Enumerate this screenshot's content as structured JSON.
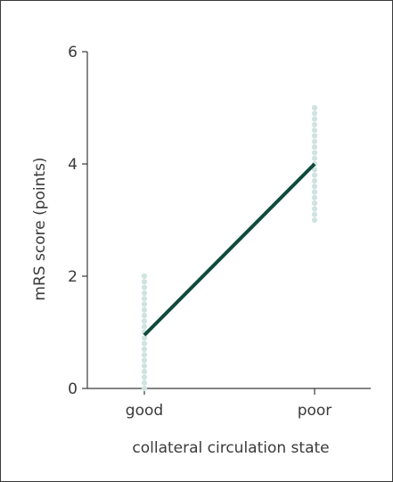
{
  "chart_data": {
    "type": "scatter",
    "xlabel": "collateral circulation state",
    "ylabel": "mRS score (points)",
    "categories": [
      "good",
      "poor"
    ],
    "ylim": [
      0,
      6
    ],
    "yticks": [
      "0",
      "2",
      "4",
      "6"
    ],
    "grid": false,
    "legend": "none",
    "trend_line": {
      "from": 0.95,
      "to": 4.0
    },
    "series": [
      {
        "category": "good",
        "values": [
          2.0,
          1.9,
          1.8,
          1.7,
          1.6,
          1.5,
          1.4,
          1.3,
          1.2,
          1.1,
          1.0,
          0.9,
          0.8,
          0.7,
          0.6,
          0.5,
          0.4,
          0.3,
          0.2,
          0.1,
          0.0
        ]
      },
      {
        "category": "poor",
        "values": [
          5.0,
          4.9,
          4.8,
          4.7,
          4.6,
          4.5,
          4.4,
          4.3,
          4.2,
          4.1,
          4.0,
          3.9,
          3.8,
          3.7,
          3.6,
          3.5,
          3.4,
          3.3,
          3.2,
          3.1,
          3.0
        ]
      }
    ],
    "colors": {
      "points": "#cfe3e1",
      "line": "#0f4a3c",
      "axis": "#3a3a3a"
    }
  }
}
